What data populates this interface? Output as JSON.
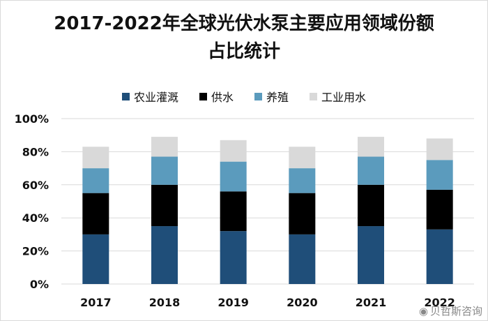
{
  "chart_data": {
    "type": "bar",
    "stacked": true,
    "title": "2017-2022年全球光伏水泵主要应用领域份额占比统计",
    "title_lines": [
      "2017-2022年全球光伏水泵主要应用领域份额",
      "占比统计"
    ],
    "categories": [
      "2017",
      "2018",
      "2019",
      "2020",
      "2021",
      "2022"
    ],
    "series": [
      {
        "name": "农业灌溉",
        "color": "#1f4e79",
        "values": [
          30,
          35,
          32,
          30,
          35,
          33
        ]
      },
      {
        "name": "供水",
        "color": "#000000",
        "values": [
          25,
          25,
          24,
          25,
          25,
          24
        ]
      },
      {
        "name": "养殖",
        "color": "#5b9bbd",
        "values": [
          15,
          17,
          18,
          15,
          17,
          18
        ]
      },
      {
        "name": "工业用水",
        "color": "#d9d9d9",
        "values": [
          13,
          12,
          13,
          13,
          12,
          13
        ]
      }
    ],
    "ylim": [
      0,
      100
    ],
    "yticks": [
      "0%",
      "20%",
      "40%",
      "60%",
      "80%",
      "100%"
    ],
    "xlabel": "",
    "ylabel": "",
    "grid": true,
    "legend_position": "top"
  },
  "watermark": {
    "text": "贝哲斯咨询",
    "icon": "weibo-icon"
  }
}
